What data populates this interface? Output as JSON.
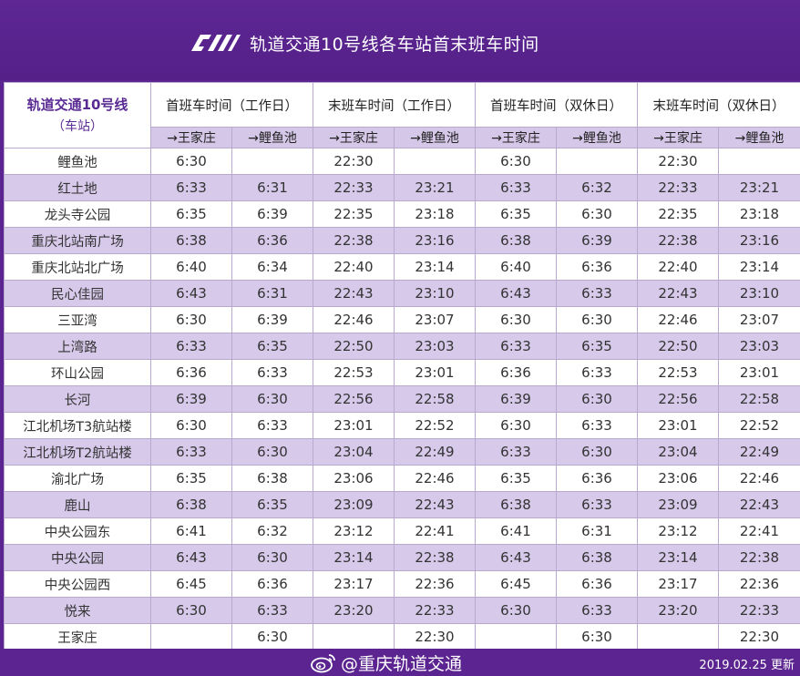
{
  "header": {
    "title": "轨道交通10号线各车站首末班车时间",
    "logo_icon": "cqrail-logo-icon"
  },
  "table": {
    "corner_title": "轨道交通10号线",
    "corner_sub": "（车站）",
    "groups": [
      "首班车时间（工作日）",
      "末班车时间（工作日）",
      "首班车时间（双休日）",
      "末班车时间（双休日）"
    ],
    "directions": [
      "→王家庄",
      "→鲤鱼池",
      "→王家庄",
      "→鲤鱼池",
      "→王家庄",
      "→鲤鱼池",
      "→王家庄",
      "→鲤鱼池"
    ],
    "rows": [
      {
        "station": "鲤鱼池",
        "times": [
          "6:30",
          "",
          "22:30",
          "",
          "6:30",
          "",
          "22:30",
          ""
        ]
      },
      {
        "station": "红土地",
        "times": [
          "6:33",
          "6:31",
          "22:33",
          "23:21",
          "6:33",
          "6:32",
          "22:33",
          "23:21"
        ]
      },
      {
        "station": "龙头寺公园",
        "times": [
          "6:35",
          "6:39",
          "22:35",
          "23:18",
          "6:35",
          "6:30",
          "22:35",
          "23:18"
        ]
      },
      {
        "station": "重庆北站南广场",
        "times": [
          "6:38",
          "6:36",
          "22:38",
          "23:16",
          "6:38",
          "6:39",
          "22:38",
          "23:16"
        ]
      },
      {
        "station": "重庆北站北广场",
        "times": [
          "6:40",
          "6:34",
          "22:40",
          "23:14",
          "6:40",
          "6:36",
          "22:40",
          "23:14"
        ]
      },
      {
        "station": "民心佳园",
        "times": [
          "6:43",
          "6:31",
          "22:43",
          "23:10",
          "6:43",
          "6:33",
          "22:43",
          "23:10"
        ]
      },
      {
        "station": "三亚湾",
        "times": [
          "6:30",
          "6:39",
          "22:46",
          "23:07",
          "6:30",
          "6:30",
          "22:46",
          "23:07"
        ]
      },
      {
        "station": "上湾路",
        "times": [
          "6:33",
          "6:35",
          "22:50",
          "23:03",
          "6:33",
          "6:35",
          "22:50",
          "23:03"
        ]
      },
      {
        "station": "环山公园",
        "times": [
          "6:36",
          "6:33",
          "22:53",
          "23:01",
          "6:36",
          "6:33",
          "22:53",
          "23:01"
        ]
      },
      {
        "station": "长河",
        "times": [
          "6:39",
          "6:30",
          "22:56",
          "22:58",
          "6:39",
          "6:30",
          "22:56",
          "22:58"
        ]
      },
      {
        "station": "江北机场T3航站楼",
        "times": [
          "6:30",
          "6:33",
          "23:01",
          "22:52",
          "6:30",
          "6:33",
          "23:01",
          "22:52"
        ]
      },
      {
        "station": "江北机场T2航站楼",
        "times": [
          "6:33",
          "6:30",
          "23:04",
          "22:49",
          "6:33",
          "6:30",
          "23:04",
          "22:49"
        ]
      },
      {
        "station": "渝北广场",
        "times": [
          "6:35",
          "6:38",
          "23:06",
          "22:46",
          "6:35",
          "6:36",
          "23:06",
          "22:46"
        ]
      },
      {
        "station": "鹿山",
        "times": [
          "6:38",
          "6:35",
          "23:09",
          "22:43",
          "6:38",
          "6:33",
          "23:09",
          "22:43"
        ]
      },
      {
        "station": "中央公园东",
        "times": [
          "6:41",
          "6:32",
          "23:12",
          "22:41",
          "6:41",
          "6:31",
          "23:12",
          "22:41"
        ]
      },
      {
        "station": "中央公园",
        "times": [
          "6:43",
          "6:30",
          "23:14",
          "22:38",
          "6:43",
          "6:38",
          "23:14",
          "22:38"
        ]
      },
      {
        "station": "中央公园西",
        "times": [
          "6:45",
          "6:36",
          "23:17",
          "22:36",
          "6:45",
          "6:36",
          "23:17",
          "22:36"
        ]
      },
      {
        "station": "悦来",
        "times": [
          "6:30",
          "6:33",
          "23:20",
          "22:33",
          "6:30",
          "6:33",
          "23:20",
          "22:33"
        ]
      },
      {
        "station": "王家庄",
        "times": [
          "",
          "6:30",
          "",
          "22:30",
          "",
          "6:30",
          "",
          "22:30"
        ]
      }
    ]
  },
  "footer": {
    "watermark": "@重庆轨道交通",
    "watermark_icon": "weibo-icon",
    "update": "2019.02.25 更新"
  },
  "colors": {
    "background": "#5b2490",
    "row_alt": "#d6c9ea",
    "header_text": "#5a2a93"
  }
}
